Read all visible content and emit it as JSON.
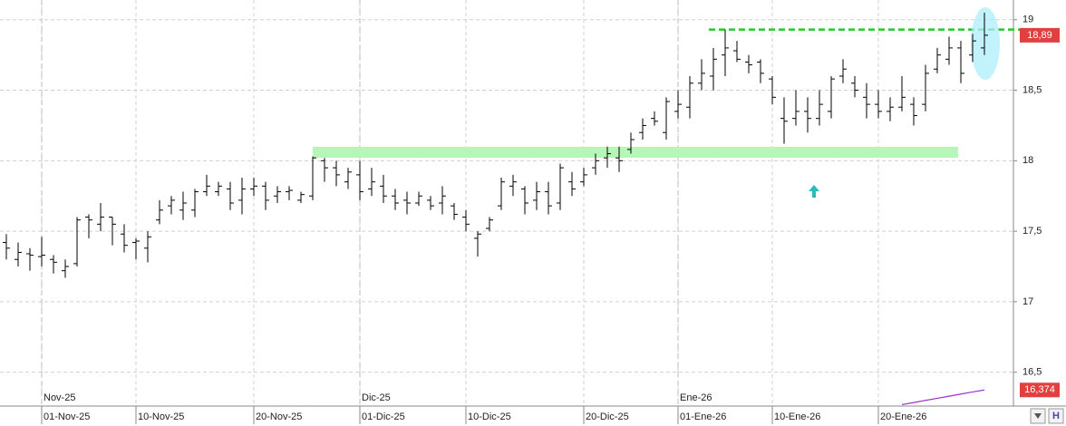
{
  "chart_data": {
    "type": "ohlc",
    "categories": [
      null,
      null,
      null,
      "01-Nov-25",
      null,
      null,
      null,
      null,
      null,
      null,
      null,
      "10-Nov-25",
      null,
      null,
      null,
      null,
      null,
      null,
      null,
      null,
      null,
      "20-Nov-25",
      null,
      null,
      null,
      null,
      null,
      null,
      null,
      null,
      "01-Dic-25",
      null,
      null,
      null,
      null,
      null,
      null,
      null,
      null,
      "10-Dic-25",
      null,
      null,
      null,
      null,
      null,
      null,
      null,
      null,
      null,
      "20-Dic-25",
      null,
      null,
      null,
      null,
      null,
      null,
      null,
      "01-Ene-26",
      null,
      null,
      null,
      null,
      null,
      null,
      null,
      "10-Ene-26",
      null,
      null,
      null,
      null,
      null,
      null,
      null,
      null,
      "20-Ene-26",
      null,
      null,
      null,
      null,
      null,
      null,
      null,
      null,
      null
    ],
    "periods": [
      null,
      null,
      null,
      "Nov-25",
      null,
      null,
      null,
      null,
      null,
      null,
      null,
      null,
      null,
      null,
      null,
      null,
      null,
      null,
      null,
      null,
      null,
      null,
      null,
      null,
      null,
      null,
      null,
      null,
      null,
      null,
      "Dic-25",
      null,
      null,
      null,
      null,
      null,
      null,
      null,
      null,
      null,
      null,
      null,
      null,
      null,
      null,
      null,
      null,
      null,
      null,
      null,
      null,
      null,
      null,
      null,
      null,
      null,
      null,
      "Ene-26",
      null,
      null,
      null,
      null,
      null,
      null,
      null,
      null,
      null,
      null,
      null,
      null,
      null,
      null,
      null,
      null,
      null,
      null,
      null,
      null,
      null,
      null,
      null,
      null,
      null,
      null
    ],
    "open": [
      17.42,
      17.3,
      17.34,
      17.32,
      17.3,
      17.22,
      17.27,
      17.6,
      17.55,
      17.6,
      17.48,
      17.42,
      17.38,
      17.58,
      17.68,
      17.65,
      17.65,
      17.78,
      17.78,
      17.8,
      17.72,
      17.8,
      17.82,
      17.75,
      17.78,
      17.72,
      17.75,
      18.0,
      17.95,
      17.85,
      17.9,
      17.8,
      17.82,
      17.75,
      17.72,
      17.7,
      17.72,
      17.7,
      17.68,
      17.6,
      17.45,
      17.52,
      17.68,
      17.82,
      17.8,
      17.72,
      17.78,
      17.7,
      17.85,
      17.85,
      17.95,
      18.02,
      18.02,
      18.08,
      18.2,
      18.3,
      18.2,
      18.35,
      18.38,
      18.55,
      18.6,
      18.75,
      18.78,
      18.7,
      18.7,
      18.58,
      18.3,
      18.3,
      18.35,
      18.3,
      18.35,
      18.6,
      18.55,
      18.45,
      18.4,
      18.35,
      18.38,
      18.4,
      18.4,
      18.65,
      18.72,
      18.8,
      18.75,
      18.8
    ],
    "high": [
      17.48,
      17.42,
      17.38,
      17.46,
      17.33,
      17.3,
      17.6,
      17.62,
      17.7,
      17.6,
      17.55,
      17.45,
      17.5,
      17.72,
      17.75,
      17.78,
      17.8,
      17.9,
      17.85,
      17.85,
      17.88,
      17.88,
      17.85,
      17.82,
      17.82,
      17.78,
      18.03,
      18.02,
      18.0,
      17.95,
      18.0,
      17.95,
      17.9,
      17.8,
      17.78,
      17.78,
      17.75,
      17.82,
      17.7,
      17.65,
      17.5,
      17.6,
      17.88,
      17.9,
      17.82,
      17.85,
      17.85,
      17.98,
      17.92,
      17.95,
      18.05,
      18.1,
      18.1,
      18.2,
      18.3,
      18.35,
      18.45,
      18.5,
      18.6,
      18.72,
      18.8,
      18.93,
      18.85,
      18.75,
      18.72,
      18.6,
      18.45,
      18.5,
      18.45,
      18.5,
      18.6,
      18.72,
      18.6,
      18.55,
      18.5,
      18.45,
      18.6,
      18.45,
      18.68,
      18.8,
      18.88,
      18.85,
      18.9,
      19.05
    ],
    "low": [
      17.3,
      17.25,
      17.22,
      17.25,
      17.2,
      17.17,
      17.25,
      17.45,
      17.5,
      17.4,
      17.35,
      17.3,
      17.28,
      17.55,
      17.62,
      17.58,
      17.6,
      17.75,
      17.75,
      17.65,
      17.62,
      17.75,
      17.65,
      17.7,
      17.72,
      17.7,
      17.72,
      17.85,
      17.82,
      17.8,
      17.72,
      17.75,
      17.7,
      17.65,
      17.62,
      17.68,
      17.65,
      17.62,
      17.58,
      17.5,
      17.32,
      17.5,
      17.65,
      17.75,
      17.62,
      17.65,
      17.62,
      17.65,
      17.75,
      17.82,
      17.9,
      17.95,
      17.92,
      18.05,
      18.15,
      18.25,
      18.15,
      18.3,
      18.3,
      18.5,
      18.5,
      18.6,
      18.7,
      18.62,
      18.55,
      18.4,
      18.12,
      18.25,
      18.2,
      18.25,
      18.3,
      18.55,
      18.45,
      18.3,
      18.3,
      18.28,
      18.35,
      18.25,
      18.35,
      18.62,
      18.68,
      18.55,
      18.7,
      18.75
    ],
    "close": [
      17.38,
      17.35,
      17.33,
      17.33,
      17.28,
      17.25,
      17.58,
      17.58,
      17.6,
      17.55,
      17.4,
      17.43,
      17.46,
      17.65,
      17.72,
      17.7,
      17.78,
      17.82,
      17.82,
      17.7,
      17.8,
      17.82,
      17.72,
      17.78,
      17.79,
      17.76,
      18.02,
      17.95,
      17.9,
      17.92,
      17.78,
      17.85,
      17.75,
      17.7,
      17.7,
      17.75,
      17.68,
      17.75,
      17.62,
      17.55,
      17.48,
      17.58,
      17.85,
      17.85,
      17.7,
      17.78,
      17.68,
      17.95,
      17.8,
      17.9,
      18.0,
      18.05,
      18.0,
      18.15,
      18.25,
      18.28,
      18.42,
      18.4,
      18.55,
      18.62,
      18.72,
      18.8,
      18.72,
      18.68,
      18.62,
      18.45,
      18.28,
      18.35,
      18.3,
      18.4,
      18.58,
      18.65,
      18.5,
      18.4,
      18.35,
      18.38,
      18.45,
      18.32,
      18.62,
      18.75,
      18.8,
      18.62,
      18.85,
      18.89
    ],
    "close_label": "18,89",
    "indicator": {
      "color": "#9933cc",
      "values": [
        null,
        null,
        null,
        null,
        null,
        null,
        null,
        null,
        null,
        null,
        null,
        null,
        null,
        null,
        null,
        null,
        null,
        null,
        null,
        null,
        null,
        null,
        null,
        null,
        null,
        null,
        null,
        null,
        null,
        null,
        null,
        null,
        null,
        null,
        null,
        null,
        null,
        null,
        null,
        null,
        null,
        null,
        null,
        null,
        null,
        null,
        null,
        null,
        null,
        null,
        null,
        null,
        null,
        null,
        null,
        null,
        null,
        null,
        null,
        null,
        null,
        null,
        null,
        null,
        null,
        null,
        null,
        null,
        null,
        null,
        null,
        null,
        null,
        null,
        null,
        null,
        16.27,
        16.285,
        16.3,
        16.315,
        16.33,
        16.345,
        16.36,
        16.374
      ],
      "label": "16,374"
    },
    "resistance": {
      "value": 18.93,
      "color": "#22cc22"
    },
    "support": {
      "value": 18.06,
      "color": "#b8f5b8"
    },
    "color": "#000000",
    "ylim": [
      16.26,
      19.14
    ],
    "yticks": [
      {
        "value": 16.5,
        "label": "16,5"
      },
      17,
      {
        "value": 17.5,
        "label": "17,5"
      },
      18,
      {
        "value": 18.5,
        "label": "18,5"
      },
      19
    ],
    "grid": true
  }
}
